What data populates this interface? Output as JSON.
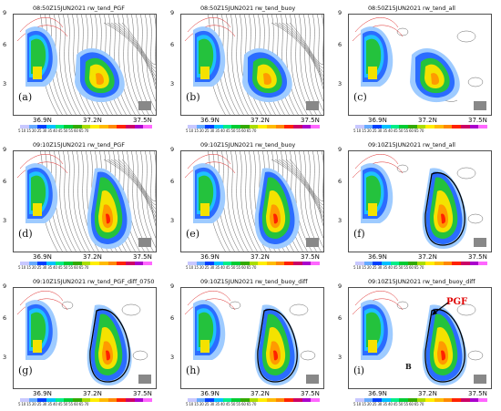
{
  "panels": [
    {
      "title": "08:50Z15JUN2021  rw_tend_PGF",
      "label": "(a)",
      "contours": "dense",
      "stage": 0,
      "extra": {
        "c1": "13.5",
        "c2": "1.5"
      }
    },
    {
      "title": "08:50Z15JUN2021  rw_tend_buoy",
      "label": "(b)",
      "contours": "dense",
      "stage": 0,
      "extra": {}
    },
    {
      "title": "08:50Z15JUN2021  rw_tend_all",
      "label": "(c)",
      "contours": "sparse",
      "stage": 0,
      "extra": {}
    },
    {
      "title": "09:10Z15JUN2021  rw_tend_PGF",
      "label": "(d)",
      "contours": "dense",
      "stage": 1,
      "extra": {
        "c1": "-15"
      }
    },
    {
      "title": "09:10Z15JUN2021  rw_tend_buoy",
      "label": "(e)",
      "contours": "dense",
      "stage": 1,
      "extra": {
        "c1": "-15"
      }
    },
    {
      "title": "09:10Z15JUN2021  rw_tend_all",
      "label": "(f)",
      "contours": "sparse",
      "stage": 1,
      "extra": {}
    },
    {
      "title": "09:10Z15JUN2021  rw_tend_PGF_diff_0750",
      "label": "(g)",
      "contours": "sparse",
      "stage": 2,
      "extra": {}
    },
    {
      "title": "09:10Z15JUN2021  rw_tend_buoy_diff",
      "label": "(h)",
      "contours": "sparse",
      "stage": 2,
      "extra": {}
    },
    {
      "title": "09:10Z15JUN2021  rw_tend_buoy_diff",
      "label": "(i)",
      "contours": "sparse",
      "stage": 2,
      "extra": {
        "pgf": "PGF",
        "b": "B"
      }
    }
  ],
  "axes": {
    "y_ticks": [
      "9",
      "6",
      "3"
    ],
    "x_ticks": [
      "36.9N",
      "37.2N",
      "37.5N"
    ]
  },
  "colorbar": {
    "ticks": "5 10 15 20 25 30 35 40 45 50 55 60 65 70",
    "colors": [
      "#c8c8ff",
      "#66aaff",
      "#0040ff",
      "#00c0ff",
      "#00ee88",
      "#00cc33",
      "#33aa00",
      "#aadd00",
      "#ffee00",
      "#ffbb00",
      "#ff8800",
      "#ff2200",
      "#cc0066",
      "#aa00cc",
      "#ff66ff"
    ]
  }
}
